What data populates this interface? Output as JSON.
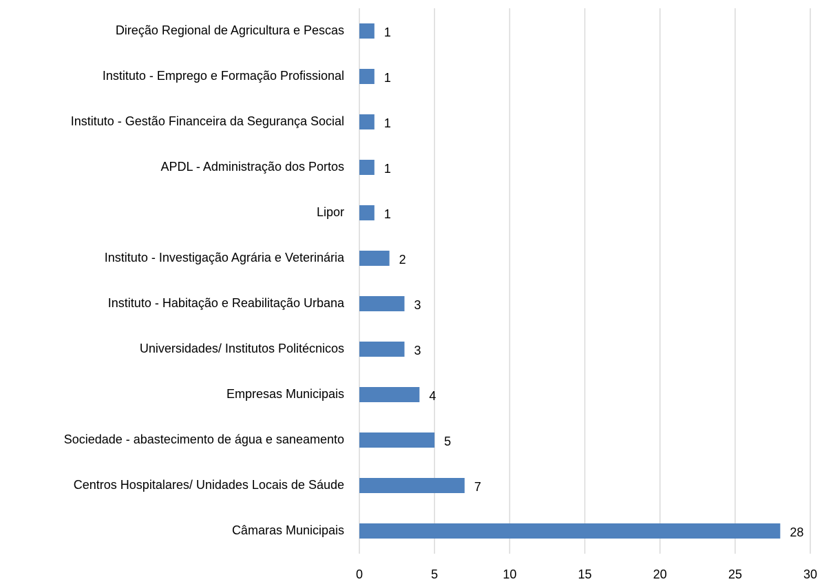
{
  "chart_data": {
    "type": "barh",
    "categories": [
      "Direção Regional de Agricultura e Pescas",
      "Instituto - Emprego e Formação Profissional",
      "Instituto - Gestão Financeira da Segurança Social",
      "APDL - Administração dos Portos",
      "Lipor",
      "Instituto - Investigação Agrária e Veterinária",
      "Instituto - Habitação e Reabilitação Urbana",
      "Universidades/ Institutos Politécnicos",
      "Empresas Municipais",
      "Sociedade - abastecimento de água e saneamento",
      "Centros Hospitalares/ Unidades Locais de Sáude",
      "Câmaras Municipais"
    ],
    "values": [
      1,
      1,
      1,
      1,
      1,
      2,
      3,
      3,
      4,
      5,
      7,
      28
    ],
    "color": "#4f81bd",
    "xlim": [
      0,
      30
    ],
    "xticks": [
      0,
      5,
      10,
      15,
      20,
      25,
      30
    ],
    "grid": true
  }
}
